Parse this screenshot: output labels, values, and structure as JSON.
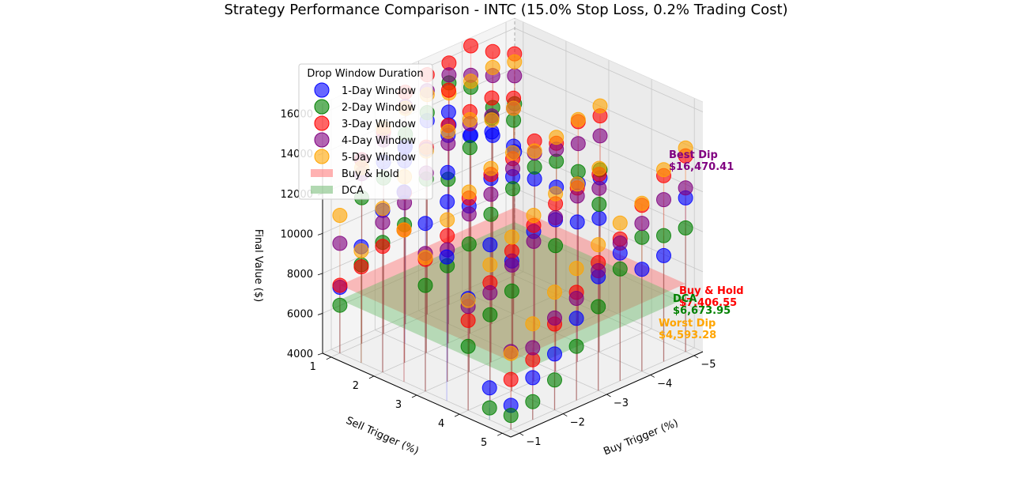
{
  "chart_data": {
    "type": "scatter3d",
    "title": "Strategy Performance Comparison - INTC (15.0% Stop Loss, 0.2% Trading Cost)",
    "xlabel": "Buy Trigger (%)",
    "ylabel": "Sell Trigger (%)",
    "zlabel": "Final Value ($)",
    "x_ticks": [
      "−1",
      "−2",
      "−3",
      "−4",
      "−5"
    ],
    "y_ticks": [
      "1",
      "2",
      "3",
      "4",
      "5"
    ],
    "z_ticks": [
      "4000",
      "6000",
      "8000",
      "10000",
      "12000",
      "14000",
      "16000"
    ],
    "xlim": [
      -5.2,
      -0.8
    ],
    "ylim": [
      0.8,
      5.2
    ],
    "zlim": [
      4000,
      16500
    ],
    "legend": {
      "title": "Drop Window Duration",
      "placement": "upper-left",
      "entries": [
        {
          "label": "1-Day Window",
          "color": "#0000ff",
          "kind": "marker"
        },
        {
          "label": "2-Day Window",
          "color": "#008000",
          "kind": "marker"
        },
        {
          "label": "3-Day Window",
          "color": "#ff0000",
          "kind": "marker"
        },
        {
          "label": "4-Day Window",
          "color": "#800080",
          "kind": "marker"
        },
        {
          "label": "5-Day Window",
          "color": "#ffa500",
          "kind": "marker"
        },
        {
          "label": "Buy & Hold",
          "color": "#ff7f7f",
          "kind": "patch"
        },
        {
          "label": "DCA",
          "color": "#7fbf7f",
          "kind": "patch"
        }
      ]
    },
    "reference_planes": [
      {
        "name": "Buy & Hold",
        "value": 7406.55,
        "color": "#ff6666"
      },
      {
        "name": "DCA",
        "value": 6673.95,
        "color": "#66bb66"
      }
    ],
    "annotations": [
      {
        "label": "Best Dip",
        "value": "$16,470.41",
        "color": "#800080"
      },
      {
        "label": "Buy & Hold",
        "value": "$7,406.55",
        "color": "#ff0000"
      },
      {
        "label": "DCA",
        "value": "$6,673.95",
        "color": "#008000"
      },
      {
        "label": "Worst Dip",
        "value": "$4,593.28",
        "color": "#ffa500"
      }
    ],
    "series": [
      {
        "name": "1-Day Window",
        "color": "#0000ff",
        "points": [
          [
            -1,
            1,
            7300
          ],
          [
            -1,
            1.5,
            9800
          ],
          [
            -1,
            2,
            12100
          ],
          [
            -1,
            2.5,
            13500
          ],
          [
            -1,
            3,
            12400
          ],
          [
            -1,
            3.5,
            11200
          ],
          [
            -1,
            4,
            9600
          ],
          [
            -1,
            4.5,
            5600
          ],
          [
            -1,
            5,
            5200
          ],
          [
            -1.5,
            1,
            13200
          ],
          [
            -1.5,
            2,
            14100
          ],
          [
            -1.5,
            3,
            13000
          ],
          [
            -1.5,
            4,
            11800
          ],
          [
            -1.5,
            5,
            6100
          ],
          [
            -2,
            1,
            12600
          ],
          [
            -2,
            1.5,
            13800
          ],
          [
            -2,
            2,
            14200
          ],
          [
            -2,
            2.5,
            13500
          ],
          [
            -2,
            3,
            12300
          ],
          [
            -2,
            4,
            10500
          ],
          [
            -2,
            5,
            6800
          ],
          [
            -2.5,
            1,
            12900
          ],
          [
            -2.5,
            2,
            14400
          ],
          [
            -2.5,
            3,
            13200
          ],
          [
            -2.5,
            4,
            11500
          ],
          [
            -2.5,
            5,
            8100
          ],
          [
            -3,
            1,
            13700
          ],
          [
            -3,
            1.5,
            14600
          ],
          [
            -3,
            2,
            13900
          ],
          [
            -3,
            3,
            12800
          ],
          [
            -3,
            4,
            11600
          ],
          [
            -3,
            5,
            9700
          ],
          [
            -3.5,
            1,
            13000
          ],
          [
            -3.5,
            2,
            13600
          ],
          [
            -3.5,
            3,
            12200
          ],
          [
            -3.5,
            4,
            11000
          ],
          [
            -3.5,
            5,
            10400
          ],
          [
            -4,
            1,
            12000
          ],
          [
            -4,
            2,
            12400
          ],
          [
            -4,
            3,
            11300
          ],
          [
            -4,
            4,
            10700
          ],
          [
            -4,
            5,
            9100
          ],
          [
            -4.5,
            1,
            11500
          ],
          [
            -4.5,
            3,
            11000
          ],
          [
            -4.5,
            5,
            9300
          ],
          [
            -5,
            1,
            10200
          ],
          [
            -5,
            3,
            10800
          ],
          [
            -5,
            5,
            11700
          ]
        ]
      },
      {
        "name": "2-Day Window",
        "color": "#008000",
        "points": [
          [
            -1,
            1,
            6400
          ],
          [
            -1,
            1.5,
            8900
          ],
          [
            -1,
            2,
            10500
          ],
          [
            -1,
            3,
            9300
          ],
          [
            -1,
            4,
            7200
          ],
          [
            -1,
            4.5,
            4600
          ],
          [
            -1,
            5,
            4700
          ],
          [
            -1.5,
            1,
            11300
          ],
          [
            -1.5,
            2,
            10900
          ],
          [
            -1.5,
            3,
            9800
          ],
          [
            -1.5,
            4,
            8300
          ],
          [
            -1.5,
            5,
            4900
          ],
          [
            -2,
            1,
            11800
          ],
          [
            -2,
            2,
            12700
          ],
          [
            -2,
            3,
            10400
          ],
          [
            -2,
            4,
            9000
          ],
          [
            -2,
            5,
            5500
          ],
          [
            -2.5,
            1,
            13500
          ],
          [
            -2.5,
            2,
            12200
          ],
          [
            -2.5,
            3,
            11400
          ],
          [
            -2.5,
            5,
            6700
          ],
          [
            -3,
            1,
            14100
          ],
          [
            -3,
            2,
            13300
          ],
          [
            -3,
            3,
            12200
          ],
          [
            -3,
            4,
            10300
          ],
          [
            -3,
            5,
            8200
          ],
          [
            -3.5,
            1,
            15100
          ],
          [
            -3.5,
            2,
            14300
          ],
          [
            -3.5,
            3,
            12800
          ],
          [
            -3.5,
            5,
            9600
          ],
          [
            -4,
            1,
            14400
          ],
          [
            -4,
            2,
            13700
          ],
          [
            -4,
            3,
            12600
          ],
          [
            -4,
            4,
            11400
          ],
          [
            -4,
            5,
            10700
          ],
          [
            -4.5,
            1,
            12900
          ],
          [
            -4.5,
            3,
            11600
          ],
          [
            -4.5,
            5,
            10300
          ],
          [
            -5,
            1,
            12600
          ],
          [
            -5,
            3,
            11200
          ],
          [
            -5,
            5,
            10200
          ]
        ]
      },
      {
        "name": "3-Day Window",
        "color": "#ff0000",
        "points": [
          [
            -1,
            1,
            7400
          ],
          [
            -1,
            1.5,
            8800
          ],
          [
            -1,
            2,
            10300
          ],
          [
            -1,
            2.5,
            11600
          ],
          [
            -1,
            3,
            10600
          ],
          [
            -1,
            4,
            8500
          ],
          [
            -1,
            5,
            6500
          ],
          [
            -1.5,
            1,
            13200
          ],
          [
            -1.5,
            2,
            12500
          ],
          [
            -1.5,
            3,
            11300
          ],
          [
            -1.5,
            4,
            9900
          ],
          [
            -1.5,
            5,
            7000
          ],
          [
            -2,
            1,
            14100
          ],
          [
            -2,
            2,
            14300
          ],
          [
            -2,
            3,
            12700
          ],
          [
            -2,
            4,
            11000
          ],
          [
            -2,
            5,
            8300
          ],
          [
            -2.5,
            1,
            15600
          ],
          [
            -2.5,
            2,
            14900
          ],
          [
            -2.5,
            3,
            13400
          ],
          [
            -2.5,
            4,
            11800
          ],
          [
            -2.5,
            5,
            9400
          ],
          [
            -3,
            1,
            16000
          ],
          [
            -3,
            1.5,
            15700
          ],
          [
            -3,
            2,
            15100
          ],
          [
            -3,
            3,
            13700
          ],
          [
            -3,
            4,
            12400
          ],
          [
            -3,
            5,
            10400
          ],
          [
            -3.5,
            1,
            16100
          ],
          [
            -3.5,
            2,
            15300
          ],
          [
            -3.5,
            3,
            14100
          ],
          [
            -3.5,
            4,
            12700
          ],
          [
            -3.5,
            5,
            11100
          ],
          [
            -4,
            1,
            16470
          ],
          [
            -4,
            2,
            14800
          ],
          [
            -4,
            3,
            13500
          ],
          [
            -4,
            4,
            12900
          ],
          [
            -4,
            5,
            12300
          ],
          [
            -4.5,
            1,
            15700
          ],
          [
            -4.5,
            3,
            14100
          ],
          [
            -4.5,
            5,
            13300
          ],
          [
            -5,
            1,
            15100
          ],
          [
            -5,
            3,
            13900
          ],
          [
            -5,
            5,
            13800
          ]
        ]
      },
      {
        "name": "4-Day Window",
        "color": "#800080",
        "points": [
          [
            -1,
            1,
            9500
          ],
          [
            -1,
            2,
            11500
          ],
          [
            -1,
            3,
            10900
          ],
          [
            -1,
            4,
            9200
          ],
          [
            -1,
            5,
            7900
          ],
          [
            -1.5,
            1,
            12500
          ],
          [
            -1.5,
            2,
            12000
          ],
          [
            -1.5,
            3,
            10600
          ],
          [
            -1.5,
            4,
            9400
          ],
          [
            -1.5,
            5,
            7600
          ],
          [
            -2,
            1,
            13700
          ],
          [
            -2,
            2,
            13000
          ],
          [
            -2,
            3,
            11900
          ],
          [
            -2,
            4,
            10300
          ],
          [
            -2,
            5,
            8600
          ],
          [
            -2.5,
            1,
            14900
          ],
          [
            -2.5,
            2,
            14000
          ],
          [
            -2.5,
            3,
            12400
          ],
          [
            -2.5,
            4,
            11000
          ],
          [
            -2.5,
            5,
            9100
          ],
          [
            -3,
            1,
            15200
          ],
          [
            -3,
            2,
            14500
          ],
          [
            -3,
            3,
            13200
          ],
          [
            -3,
            4,
            11700
          ],
          [
            -3,
            5,
            10000
          ],
          [
            -3.5,
            1,
            15500
          ],
          [
            -3.5,
            2,
            14400
          ],
          [
            -3.5,
            3,
            13500
          ],
          [
            -3.5,
            4,
            12300
          ],
          [
            -3.5,
            5,
            10900
          ],
          [
            -4,
            1,
            15000
          ],
          [
            -4,
            2,
            14300
          ],
          [
            -4,
            3,
            13200
          ],
          [
            -4,
            4,
            12200
          ],
          [
            -4,
            5,
            11400
          ],
          [
            -4.5,
            1,
            14500
          ],
          [
            -4.5,
            3,
            13000
          ],
          [
            -4.5,
            5,
            12100
          ],
          [
            -5,
            1,
            14000
          ],
          [
            -5,
            3,
            12900
          ],
          [
            -5,
            5,
            12200
          ]
        ]
      },
      {
        "name": "5-Day Window",
        "color": "#ffa500",
        "points": [
          [
            -1,
            1,
            10900
          ],
          [
            -1,
            1.5,
            9600
          ],
          [
            -1,
            2,
            12200
          ],
          [
            -1,
            2.5,
            11600
          ],
          [
            -1,
            3,
            10700
          ],
          [
            -1,
            4,
            9500
          ],
          [
            -1,
            5,
            7800
          ],
          [
            -1.5,
            1,
            12800
          ],
          [
            -1.5,
            2,
            13300
          ],
          [
            -1.5,
            3,
            12100
          ],
          [
            -1.5,
            4,
            10800
          ],
          [
            -1.5,
            5,
            8800
          ],
          [
            -2,
            1,
            14300
          ],
          [
            -2,
            2,
            14100
          ],
          [
            -2,
            3,
            13000
          ],
          [
            -2,
            4,
            11700
          ],
          [
            -2,
            5,
            9900
          ],
          [
            -2.5,
            1,
            14800
          ],
          [
            -2.5,
            2,
            14600
          ],
          [
            -2.5,
            3,
            13700
          ],
          [
            -2.5,
            4,
            12300
          ],
          [
            -2.5,
            5,
            10600
          ],
          [
            -3,
            1,
            15000
          ],
          [
            -3,
            2,
            14700
          ],
          [
            -3,
            3,
            14000
          ],
          [
            -3,
            4,
            12900
          ],
          [
            -3,
            5,
            11300
          ],
          [
            -3.5,
            1,
            14600
          ],
          [
            -3.5,
            2,
            14200
          ],
          [
            -3.5,
            3,
            13600
          ],
          [
            -3.5,
            4,
            12900
          ],
          [
            -3.5,
            5,
            11900
          ],
          [
            -4,
            1,
            14700
          ],
          [
            -4,
            2,
            14300
          ],
          [
            -4,
            3,
            13800
          ],
          [
            -4,
            4,
            13200
          ],
          [
            -4,
            5,
            12400
          ],
          [
            -4.5,
            1,
            14900
          ],
          [
            -4.5,
            3,
            14200
          ],
          [
            -4.5,
            5,
            13600
          ],
          [
            -5,
            1,
            14700
          ],
          [
            -5,
            3,
            14400
          ],
          [
            -5,
            5,
            14200
          ]
        ]
      }
    ]
  }
}
